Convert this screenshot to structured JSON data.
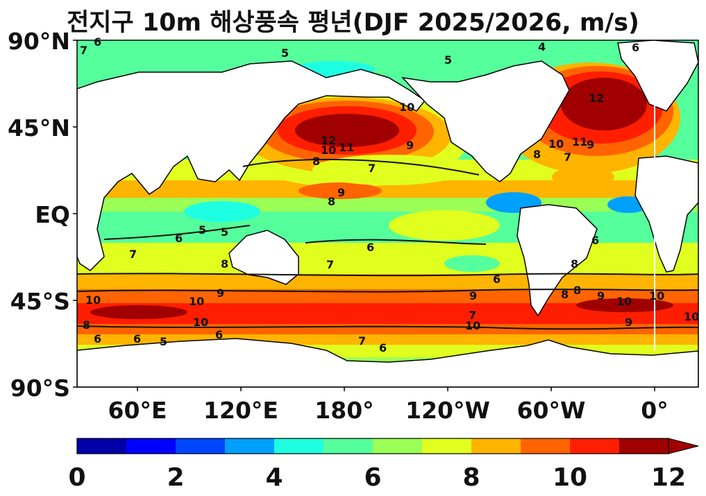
{
  "title": "전지구 10m 해상풍속 평년(DJF 2025/2026, m/s)",
  "map": {
    "lat_ticks": [
      "90°N",
      "45°N",
      "EQ",
      "45°S",
      "90°S"
    ],
    "lon_ticks": [
      "60°E",
      "120°E",
      "180°",
      "120°W",
      "60°W",
      "0°"
    ]
  },
  "colorbar": {
    "ticks": [
      "0",
      "2",
      "4",
      "6",
      "8",
      "10",
      "12"
    ],
    "colors": [
      "#0000a8",
      "#0000ff",
      "#0046ff",
      "#00a0ff",
      "#1effe1",
      "#55ff9b",
      "#9bff55",
      "#e1ff1e",
      "#ffb400",
      "#ff6400",
      "#ff1e00",
      "#a00000"
    ],
    "extend": "max"
  },
  "contour_labels": [
    {
      "text": "5"
    },
    {
      "text": "5"
    },
    {
      "text": "6"
    },
    {
      "text": "6"
    },
    {
      "text": "7"
    },
    {
      "text": "4"
    },
    {
      "text": "12"
    },
    {
      "text": "11"
    },
    {
      "text": "10"
    },
    {
      "text": "10"
    },
    {
      "text": "9"
    },
    {
      "text": "8"
    },
    {
      "text": "12"
    },
    {
      "text": "11"
    },
    {
      "text": "10"
    },
    {
      "text": "9"
    },
    {
      "text": "8"
    },
    {
      "text": "7"
    },
    {
      "text": "7"
    },
    {
      "text": "9"
    },
    {
      "text": "8"
    },
    {
      "text": "6"
    },
    {
      "text": "5"
    },
    {
      "text": "5"
    },
    {
      "text": "6"
    },
    {
      "text": "7"
    },
    {
      "text": "6"
    },
    {
      "text": "7"
    },
    {
      "text": "8"
    },
    {
      "text": "7"
    },
    {
      "text": "6"
    },
    {
      "text": "8"
    },
    {
      "text": "9"
    },
    {
      "text": "10"
    },
    {
      "text": "10"
    },
    {
      "text": "10"
    },
    {
      "text": "9"
    },
    {
      "text": "8"
    },
    {
      "text": "10"
    },
    {
      "text": "10"
    },
    {
      "text": "9"
    },
    {
      "text": "10"
    },
    {
      "text": "8"
    },
    {
      "text": "9"
    },
    {
      "text": "10"
    },
    {
      "text": "6"
    },
    {
      "text": "6"
    },
    {
      "text": "6"
    },
    {
      "text": "5"
    },
    {
      "text": "6"
    },
    {
      "text": "7"
    },
    {
      "text": "8"
    }
  ]
}
